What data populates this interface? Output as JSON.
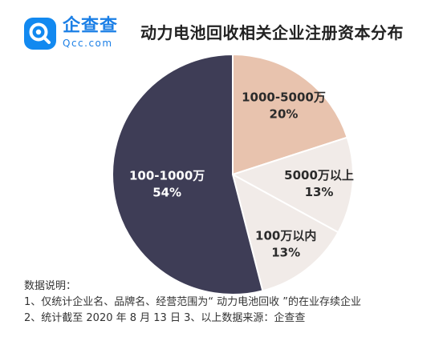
{
  "brand": {
    "name": "企查查",
    "domain": "Qcc.com",
    "accent": "#1289f0"
  },
  "chart_data": {
    "type": "pie",
    "title": "动力电池回收相关企业注册资本分布",
    "slices": [
      {
        "label": "1000-5000万",
        "value": 20,
        "value_label": "20%",
        "color": "#e8c3ae",
        "text_color": "#2b2b2b"
      },
      {
        "label": "5000万以上",
        "value": 13,
        "value_label": "13%",
        "color": "#f1ebe8",
        "text_color": "#2b2b2b"
      },
      {
        "label": "100万以内",
        "value": 13,
        "value_label": "13%",
        "color": "#f1ebe8",
        "text_color": "#2b2b2b"
      },
      {
        "label": "100-1000万",
        "value": 54,
        "value_label": "54%",
        "color": "#3e3d56",
        "text_color": "#ffffff"
      }
    ],
    "start_angle_deg": 0,
    "direction": "clockwise",
    "slice_border": "#ffffff"
  },
  "notes": {
    "heading": "数据说明：",
    "line1": "1、仅统计企业名、品牌名、经营范围为“ 动力电池回收 ”的在业存续企业",
    "line2": "2、统计截至 2020 年 8 月 13 日  3、以上数据来源：企查查"
  }
}
